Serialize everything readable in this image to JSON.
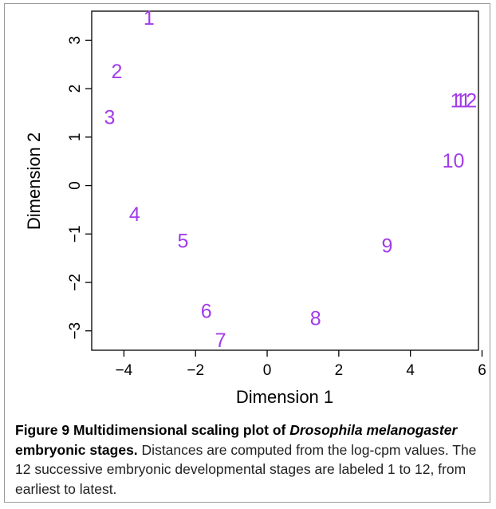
{
  "chart_data": {
    "type": "scatter",
    "xlabel": "Dimension 1",
    "ylabel": "Dimension 2",
    "xlim": [
      -4.9,
      5.9
    ],
    "ylim": [
      -3.4,
      3.6
    ],
    "xticks": [
      "−4",
      "−2",
      "0",
      "2",
      "4",
      "6"
    ],
    "xtick_values": [
      -4,
      -2,
      0,
      2,
      4,
      6
    ],
    "yticks": [
      "−3",
      "−2",
      "−1",
      "0",
      "1",
      "2",
      "3"
    ],
    "ytick_values": [
      -3,
      -2,
      -1,
      0,
      1,
      2,
      3
    ],
    "label_color": "#a23bea",
    "points": [
      {
        "label": "1",
        "x": -3.3,
        "y": 3.45
      },
      {
        "label": "2",
        "x": -4.2,
        "y": 2.35
      },
      {
        "label": "3",
        "x": -4.4,
        "y": 1.4
      },
      {
        "label": "4",
        "x": -3.7,
        "y": -0.6
      },
      {
        "label": "5",
        "x": -2.35,
        "y": -1.15
      },
      {
        "label": "6",
        "x": -1.7,
        "y": -2.6
      },
      {
        "label": "7",
        "x": -1.3,
        "y": -3.2
      },
      {
        "label": "8",
        "x": 1.35,
        "y": -2.75
      },
      {
        "label": "9",
        "x": 3.35,
        "y": -1.25
      },
      {
        "label": "10",
        "x": 5.2,
        "y": 0.5
      },
      {
        "label": "11",
        "x": 5.4,
        "y": 1.75
      },
      {
        "label": "12",
        "x": 5.55,
        "y": 1.75
      }
    ]
  },
  "caption": {
    "figure_label": "Figure 9",
    "bold_lead": "Multidimensional scaling plot of ",
    "italic_species": "Drosophila melanogaster",
    "bold_tail": " embryonic stages.",
    "body": "Distances are computed from the log-cpm values. The 12 successive embryonic developmental stages are labeled 1 to 12, from earliest to latest."
  }
}
